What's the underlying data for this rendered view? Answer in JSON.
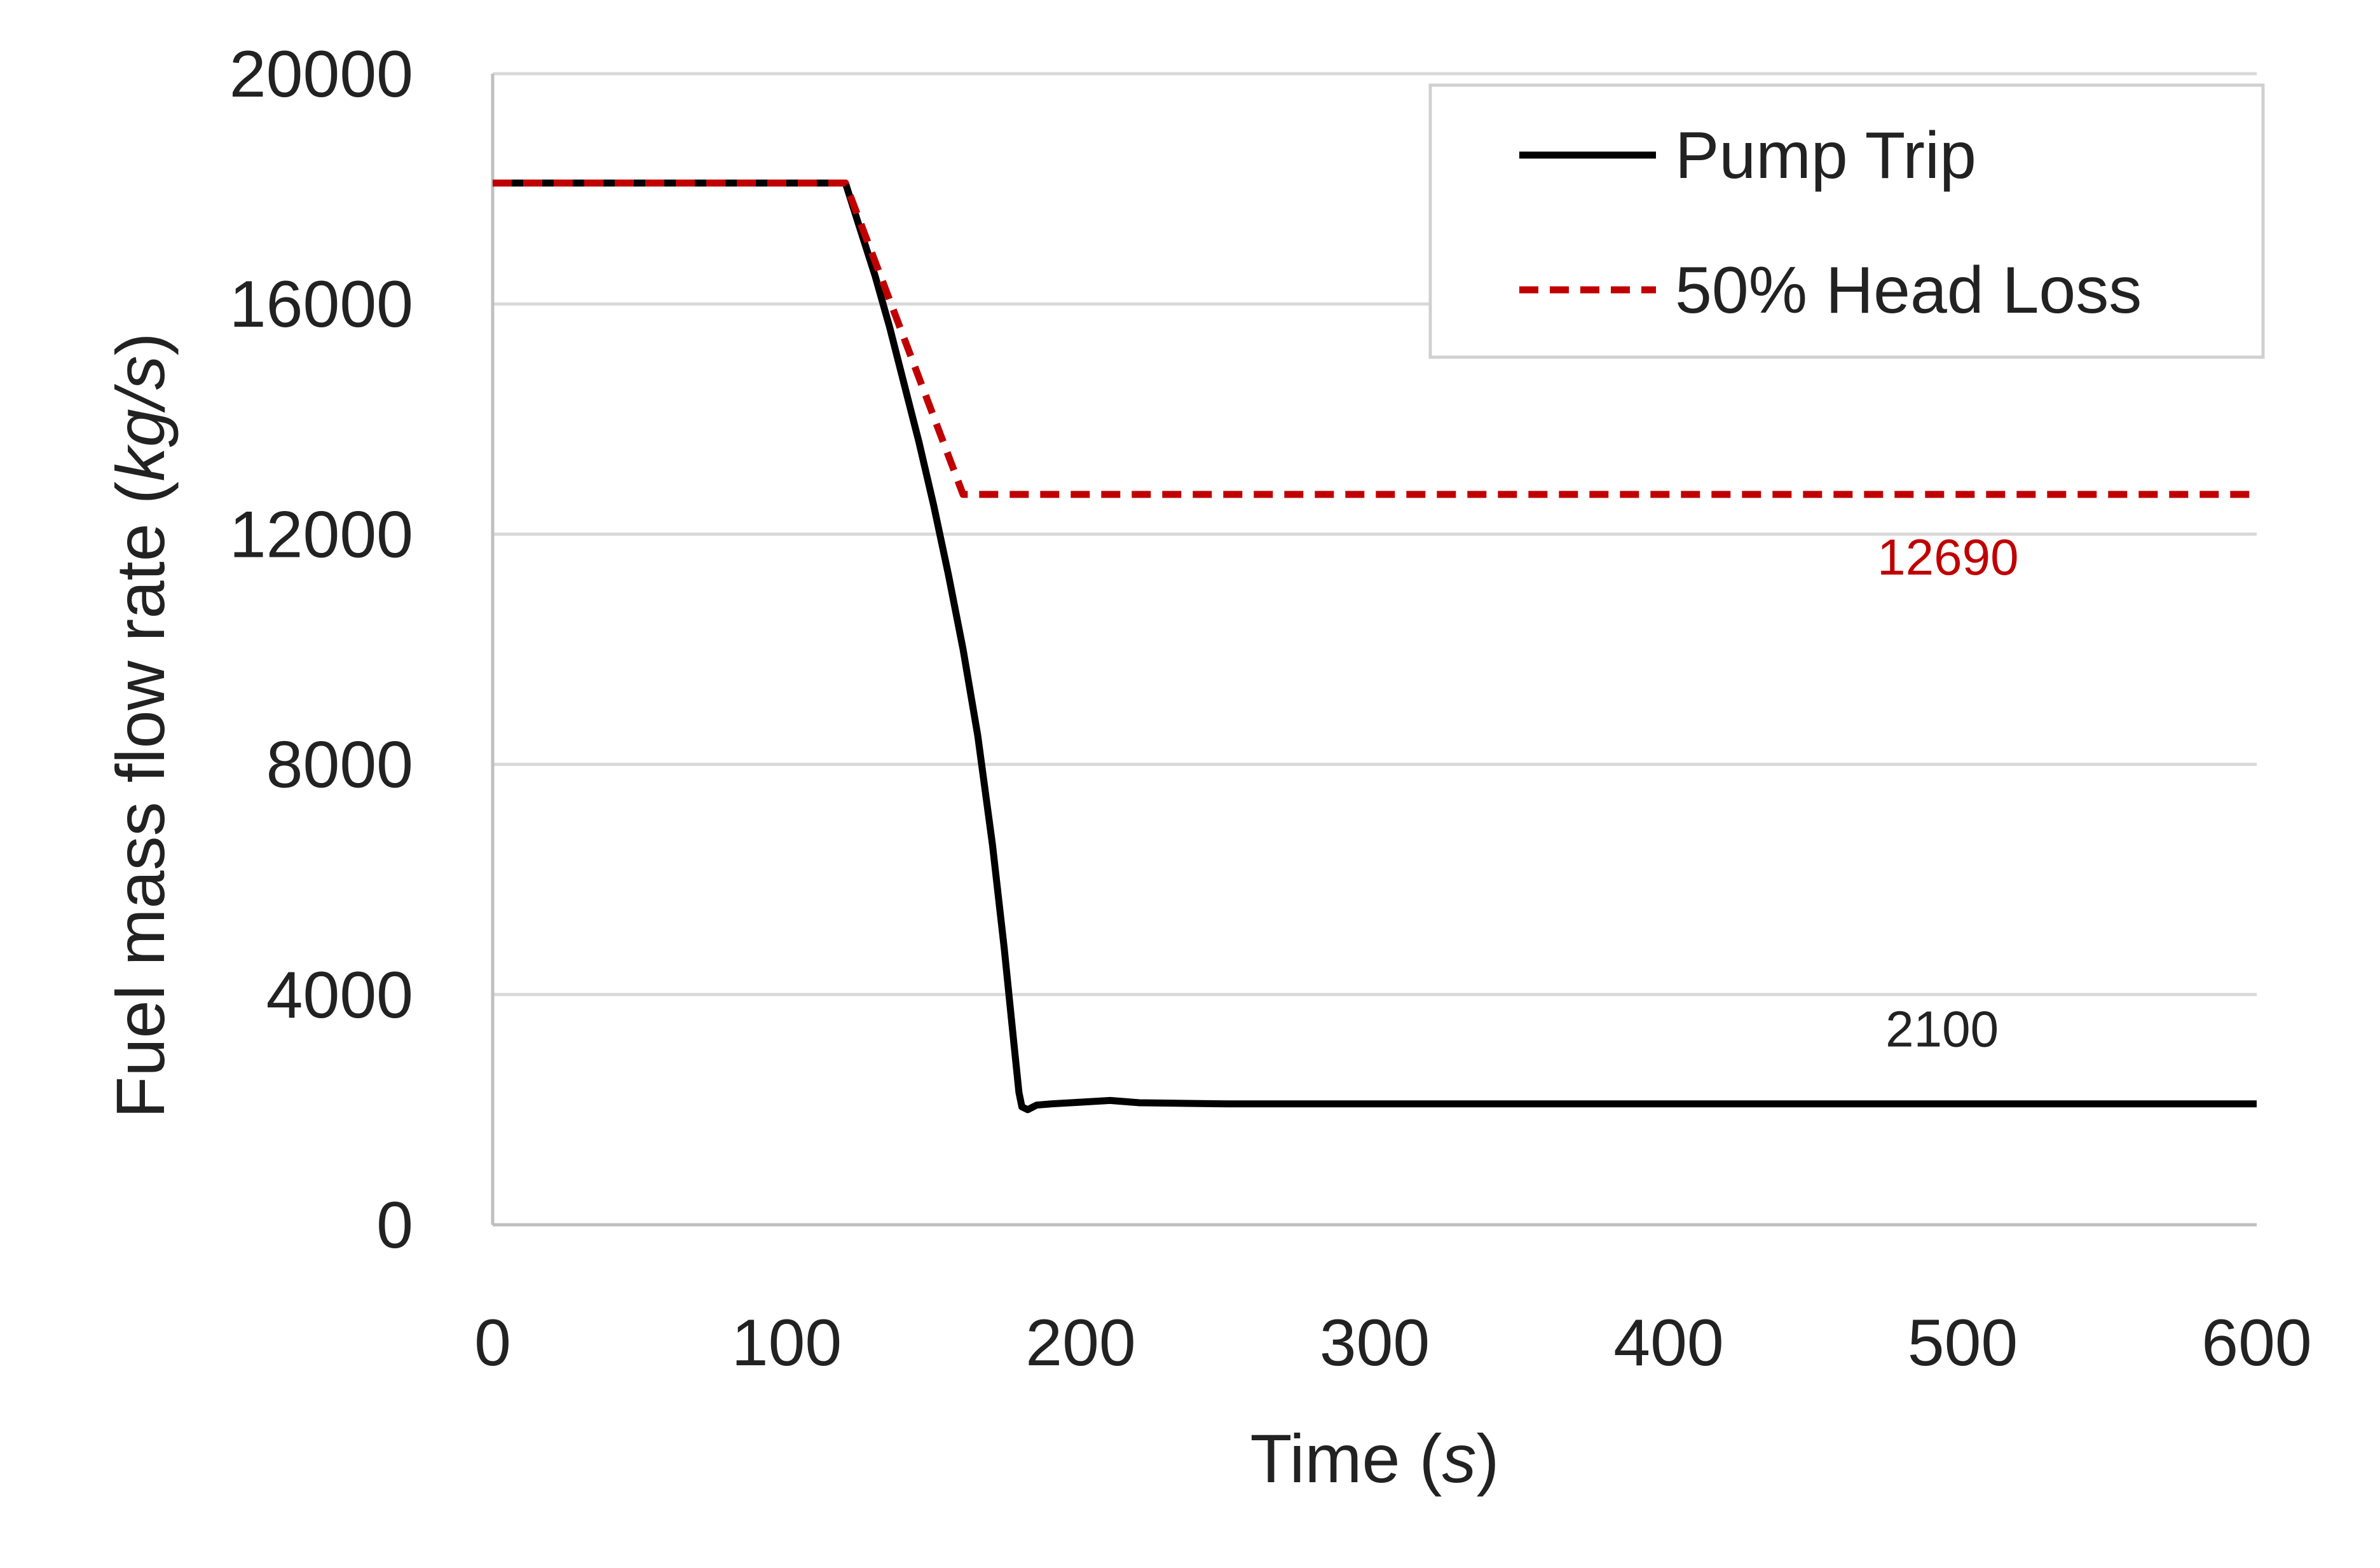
{
  "chart_data": {
    "type": "line",
    "xlabel_prefix": "Time (",
    "xlabel_unit": "s",
    "xlabel_suffix": ")",
    "ylabel_prefix": "Fuel mass flow rate (",
    "ylabel_unit": "kg/s",
    "ylabel_suffix": ")",
    "xlim": [
      0,
      600
    ],
    "ylim": [
      0,
      20000
    ],
    "xticks": [
      0,
      100,
      200,
      300,
      400,
      500,
      600
    ],
    "yticks": [
      0,
      4000,
      8000,
      12000,
      16000,
      20000
    ],
    "grid": "horizontal",
    "legend_position": "top-right",
    "series": [
      {
        "name": "Pump Trip",
        "color": "#000000",
        "style": "solid",
        "x": [
          0,
          120,
          125,
          130,
          135,
          140,
          145,
          150,
          155,
          160,
          165,
          170,
          174,
          177,
          179,
          180,
          182,
          185,
          190,
          200,
          210,
          220,
          250,
          300,
          400,
          500,
          600
        ],
        "y": [
          18100,
          18100,
          17300,
          16500,
          15600,
          14600,
          13600,
          12500,
          11300,
          10000,
          8500,
          6600,
          4800,
          3300,
          2300,
          2050,
          2000,
          2080,
          2100,
          2130,
          2160,
          2120,
          2100,
          2100,
          2100,
          2100,
          2100
        ]
      },
      {
        "name": "50% Head Loss",
        "color": "#c00000",
        "style": "dashed",
        "x": [
          0,
          120,
          160,
          200,
          300,
          400,
          500,
          600
        ],
        "y": [
          18100,
          18100,
          12690,
          12690,
          12690,
          12690,
          12690,
          12690
        ]
      }
    ],
    "annotations": [
      {
        "text": "12690",
        "x": 495,
        "y": 11300,
        "color": "#c00000"
      },
      {
        "text": "2100",
        "x": 493,
        "y": 3100,
        "color": "#222222"
      }
    ]
  }
}
